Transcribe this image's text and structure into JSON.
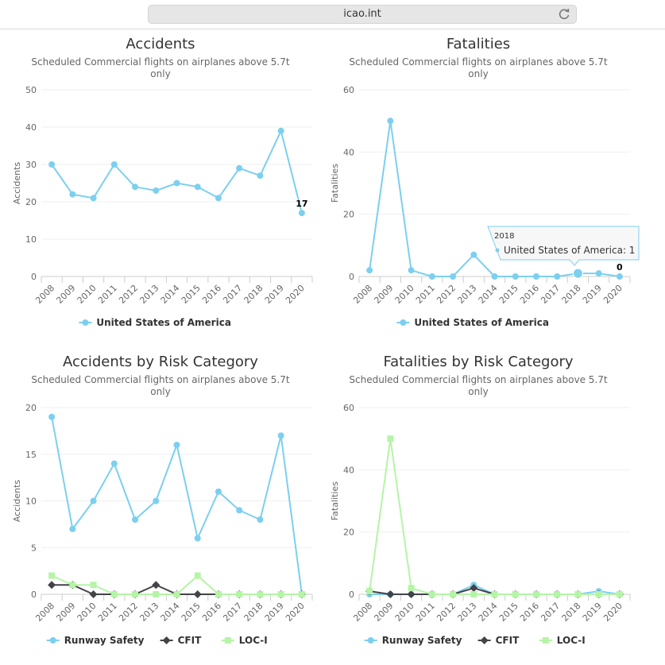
{
  "browser": {
    "url": "icao.int"
  },
  "charts": [
    {
      "type": "line",
      "title": "Accidents",
      "subtitle": [
        "Scheduled Commercial flights on airplanes above 5.7t",
        "only"
      ],
      "ylabel": "Accidents",
      "ylim": [
        0,
        50
      ],
      "yticks": [
        0,
        10,
        20,
        30,
        40,
        50
      ],
      "categories": [
        "2008",
        "2009",
        "2010",
        "2011",
        "2012",
        "2013",
        "2014",
        "2015",
        "2016",
        "2017",
        "2018",
        "2019",
        "2020"
      ],
      "series": [
        {
          "name": "United States of America",
          "color": "#7ccfef",
          "marker": "circle",
          "values": [
            30,
            22,
            21,
            30,
            24,
            23,
            25,
            24,
            21,
            29,
            27,
            39,
            17
          ]
        }
      ],
      "data_labels": [
        {
          "index": 12,
          "text": "17"
        }
      ]
    },
    {
      "type": "line",
      "title": "Fatalities",
      "subtitle": [
        "Scheduled Commercial flights on airplanes above 5.7t",
        "only"
      ],
      "ylabel": "Fatalities",
      "ylim": [
        0,
        60
      ],
      "yticks": [
        0,
        20,
        40,
        60
      ],
      "categories": [
        "2008",
        "2009",
        "2010",
        "2011",
        "2012",
        "2013",
        "2014",
        "2015",
        "2016",
        "2017",
        "2018",
        "2019",
        "2020"
      ],
      "series": [
        {
          "name": "United States of America",
          "color": "#7ccfef",
          "marker": "circle",
          "values": [
            2,
            50,
            2,
            0,
            0,
            7,
            0,
            0,
            0,
            0,
            1,
            1,
            0
          ]
        }
      ],
      "data_labels": [
        {
          "index": 12,
          "text": "0"
        }
      ],
      "tooltip": {
        "index": 10,
        "header": "2018",
        "text": "United States of America: 1"
      }
    },
    {
      "type": "line",
      "title": "Accidents by Risk Category",
      "subtitle": [
        "Scheduled Commercial flights on airplanes above 5.7t",
        "only"
      ],
      "ylabel": "Accidents",
      "ylim": [
        0,
        20
      ],
      "yticks": [
        0,
        5,
        10,
        15,
        20
      ],
      "categories": [
        "2008",
        "2009",
        "2010",
        "2011",
        "2012",
        "2013",
        "2014",
        "2015",
        "2016",
        "2017",
        "2018",
        "2019",
        "2020"
      ],
      "series": [
        {
          "name": "Runway Safety",
          "color": "#7ccfef",
          "marker": "circle",
          "values": [
            19,
            7,
            10,
            14,
            8,
            10,
            16,
            6,
            11,
            9,
            8,
            17,
            0
          ]
        },
        {
          "name": "CFIT",
          "color": "#434348",
          "marker": "diamond",
          "values": [
            1,
            1,
            0,
            0,
            0,
            1,
            0,
            0,
            0,
            0,
            0,
            0,
            0
          ]
        },
        {
          "name": "LOC-I",
          "color": "#b5f4a7",
          "marker": "square",
          "values": [
            2,
            1,
            1,
            0,
            0,
            0,
            0,
            2,
            0,
            0,
            0,
            0,
            0
          ]
        }
      ]
    },
    {
      "type": "line",
      "title": "Fatalities by Risk Category",
      "subtitle": [
        "Scheduled Commercial flights on airplanes above 5.7t",
        "only"
      ],
      "ylabel": "Fatalities",
      "ylim": [
        0,
        60
      ],
      "yticks": [
        0,
        20,
        40,
        60
      ],
      "categories": [
        "2008",
        "2009",
        "2010",
        "2011",
        "2012",
        "2013",
        "2014",
        "2015",
        "2016",
        "2017",
        "2018",
        "2019",
        "2020"
      ],
      "series": [
        {
          "name": "Runway Safety",
          "color": "#7ccfef",
          "marker": "circle",
          "values": [
            0,
            0,
            0,
            0,
            0,
            3,
            0,
            0,
            0,
            0,
            0,
            1,
            0
          ]
        },
        {
          "name": "CFIT",
          "color": "#434348",
          "marker": "diamond",
          "values": [
            1,
            0,
            0,
            0,
            0,
            2,
            0,
            0,
            0,
            0,
            0,
            0,
            0
          ]
        },
        {
          "name": "LOC-I",
          "color": "#b5f4a7",
          "marker": "square",
          "values": [
            1,
            50,
            2,
            0,
            0,
            0,
            0,
            0,
            0,
            0,
            0,
            0,
            0
          ]
        }
      ]
    }
  ]
}
